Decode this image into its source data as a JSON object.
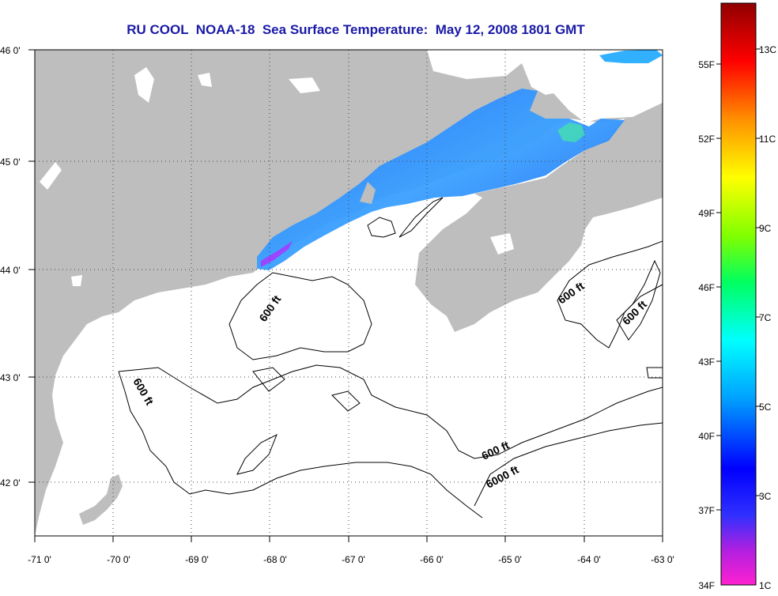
{
  "title": "RU COOL  NOAA-18  Sea Surface Temperature:  May 12, 2008 1801 GMT",
  "map": {
    "lon_ticks": [
      "-71 0'",
      "-70 0'",
      "-69 0'",
      "-68 0'",
      "-67 0'",
      "-66 0'",
      "-65 0'",
      "-64 0'",
      "-63 0'"
    ],
    "lat_ticks": [
      "46 0'",
      "45 0'",
      "44 0'",
      "43 0'",
      "42 0'"
    ],
    "land_color": "#bebebe",
    "ocean_color": "#ffffff",
    "grid": "dotted",
    "contour_labels": [
      "600 ft",
      "600 ft",
      "600 ft",
      "600 ft",
      "600 ft",
      "6000 ft"
    ]
  },
  "colorbar": {
    "fahrenheit_labels": [
      "55F",
      "52F",
      "49F",
      "46F",
      "43F",
      "40F",
      "37F",
      "34F"
    ],
    "celsius_labels": [
      "13C",
      "11C",
      "9C",
      "7C",
      "5C",
      "3C",
      "1C"
    ],
    "range_c": [
      1,
      14
    ]
  }
}
